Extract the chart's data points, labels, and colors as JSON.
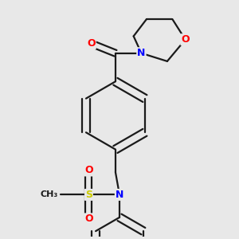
{
  "bg_color": "#e8e8e8",
  "bond_color": "#1a1a1a",
  "bond_width": 1.6,
  "atom_colors": {
    "O": "#ff0000",
    "N": "#0000ff",
    "S": "#cccc00",
    "C": "#1a1a1a"
  },
  "font_size_atom": 9,
  "fig_bg": "#e8e8e8"
}
